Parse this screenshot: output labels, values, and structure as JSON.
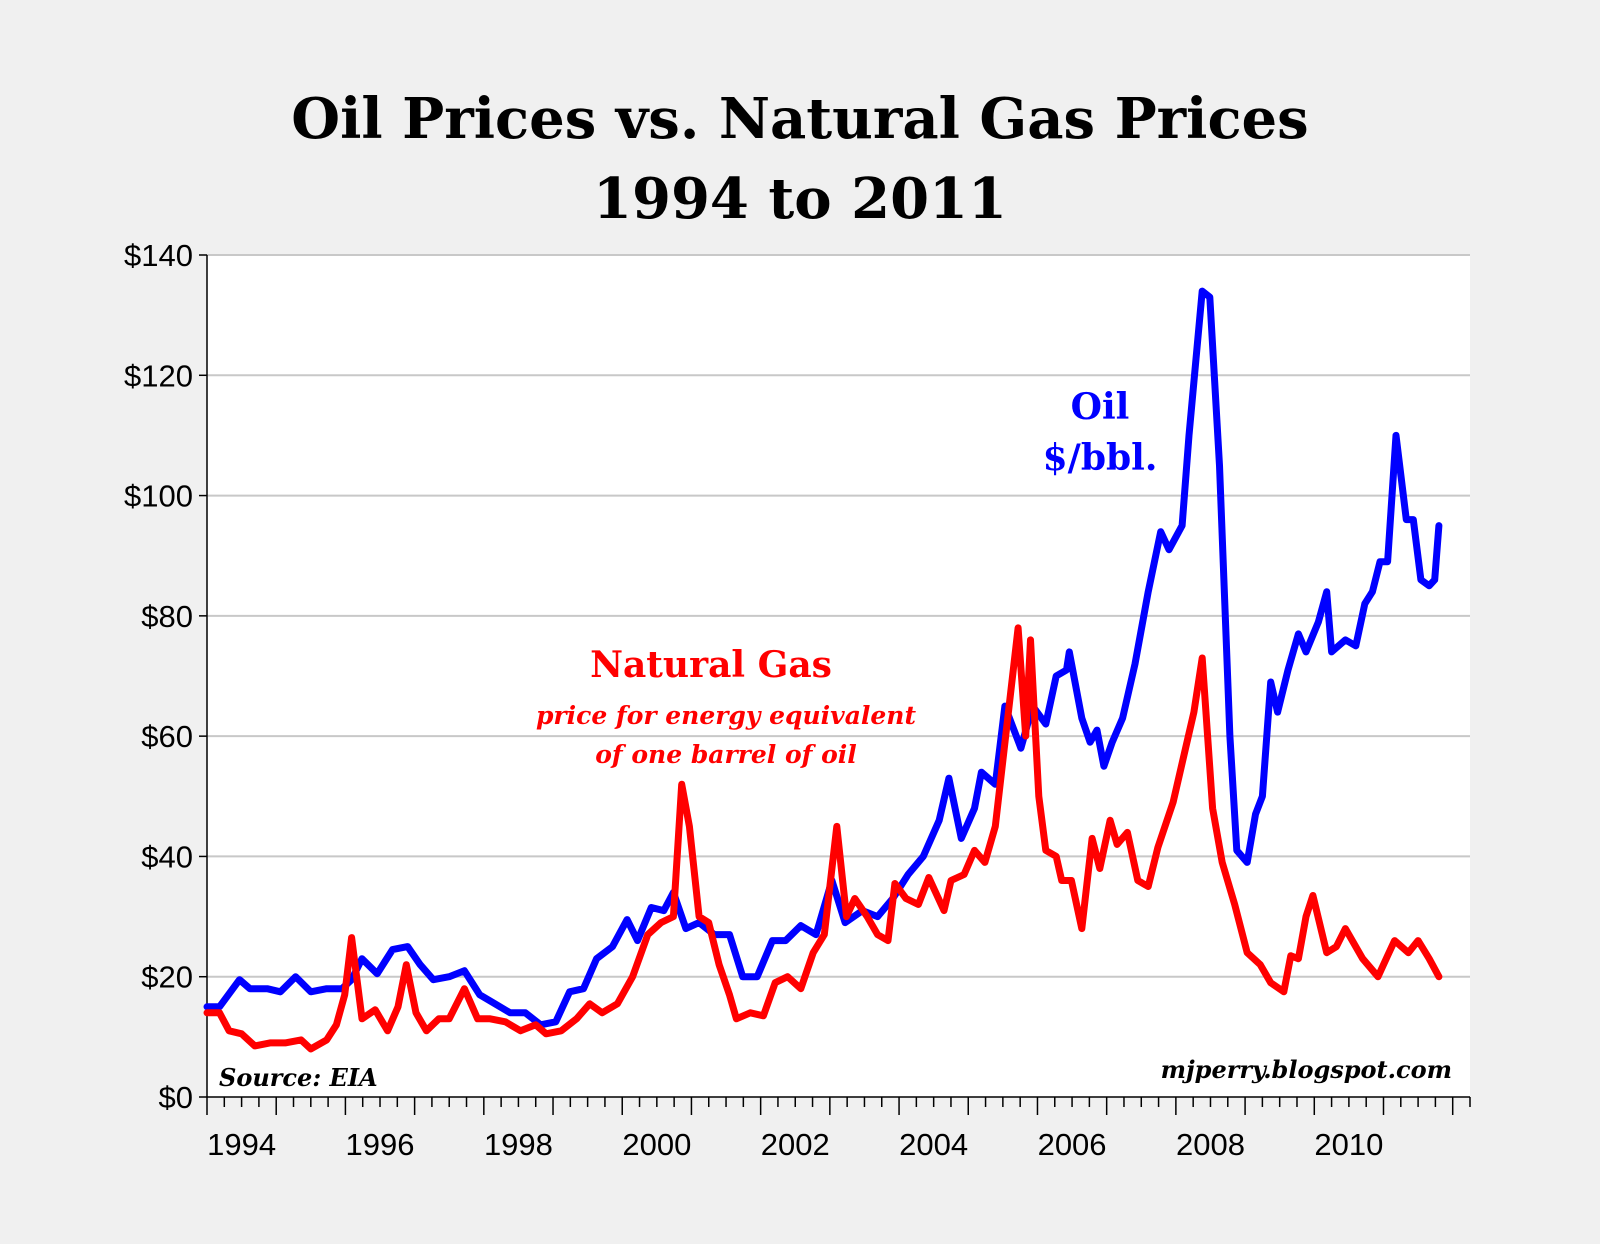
{
  "chart_data": {
    "type": "line",
    "title": "Oil Prices vs. Natural Gas Prices",
    "subtitle": "1994 to 2011",
    "xlabel": "",
    "ylabel": "",
    "xlim": [
      1994,
      2012.25
    ],
    "ylim": [
      0,
      140
    ],
    "y_ticks": [
      "$0",
      "$20",
      "$40",
      "$60",
      "$80",
      "$100",
      "$120",
      "$140"
    ],
    "x_ticks": [
      "1994",
      "1996",
      "1998",
      "2000",
      "2002",
      "2004",
      "2006",
      "2008",
      "2010"
    ],
    "grid": "horizontal",
    "colors": {
      "oil": "#0000ff",
      "gas": "#ff0000",
      "background": "#f0f0f0",
      "plot_background": "#ffffff",
      "grid": "#c8c8c8"
    },
    "annotations": {
      "oil_label": "Oil",
      "oil_unit": "$/bbl.",
      "gas_label": "Natural Gas",
      "gas_note_1": "price for energy equivalent",
      "gas_note_2": "of one barrel of oil",
      "source": "Source: EIA",
      "credit": "mjperry.blogspot.com"
    },
    "series": [
      {
        "key": "oil",
        "name": "Oil $/bbl.",
        "points": [
          [
            1994.0,
            15
          ],
          [
            1994.18,
            15
          ],
          [
            1994.47,
            19.5
          ],
          [
            1994.62,
            18
          ],
          [
            1994.87,
            18
          ],
          [
            1995.06,
            17.5
          ],
          [
            1995.28,
            20
          ],
          [
            1995.5,
            17.5
          ],
          [
            1995.73,
            18
          ],
          [
            1995.95,
            18
          ],
          [
            1996.09,
            19.5
          ],
          [
            1996.24,
            23
          ],
          [
            1996.46,
            20.5
          ],
          [
            1996.68,
            24.5
          ],
          [
            1996.9,
            25
          ],
          [
            1997.08,
            22
          ],
          [
            1997.27,
            19.5
          ],
          [
            1997.5,
            20
          ],
          [
            1997.72,
            21
          ],
          [
            1997.94,
            17
          ],
          [
            1998.16,
            15.5
          ],
          [
            1998.38,
            14
          ],
          [
            1998.6,
            14
          ],
          [
            1998.82,
            12
          ],
          [
            1999.04,
            12.5
          ],
          [
            1999.24,
            17.5
          ],
          [
            1999.44,
            18
          ],
          [
            1999.63,
            23
          ],
          [
            1999.86,
            25
          ],
          [
            2000.07,
            29.5
          ],
          [
            2000.22,
            26
          ],
          [
            2000.42,
            31.5
          ],
          [
            2000.6,
            31
          ],
          [
            2000.74,
            34
          ],
          [
            2000.92,
            28
          ],
          [
            2001.11,
            29
          ],
          [
            2001.33,
            27
          ],
          [
            2001.55,
            27
          ],
          [
            2001.74,
            20
          ],
          [
            2001.95,
            20
          ],
          [
            2002.17,
            26
          ],
          [
            2002.36,
            26
          ],
          [
            2002.58,
            28.5
          ],
          [
            2002.8,
            27
          ],
          [
            2003.03,
            36
          ],
          [
            2003.22,
            29
          ],
          [
            2003.47,
            31
          ],
          [
            2003.69,
            30
          ],
          [
            2003.91,
            33
          ],
          [
            2004.13,
            37
          ],
          [
            2004.35,
            40
          ],
          [
            2004.58,
            46
          ],
          [
            2004.72,
            53
          ],
          [
            2004.9,
            43
          ],
          [
            2005.09,
            48
          ],
          [
            2005.19,
            54
          ],
          [
            2005.39,
            52
          ],
          [
            2005.53,
            65
          ],
          [
            2005.76,
            58
          ],
          [
            2005.93,
            65
          ],
          [
            2006.12,
            62
          ],
          [
            2006.27,
            70
          ],
          [
            2006.42,
            71
          ],
          [
            2006.46,
            74
          ],
          [
            2006.64,
            63
          ],
          [
            2006.76,
            59
          ],
          [
            2006.86,
            61
          ],
          [
            2006.96,
            55
          ],
          [
            2007.08,
            59
          ],
          [
            2007.23,
            63
          ],
          [
            2007.41,
            72
          ],
          [
            2007.6,
            84
          ],
          [
            2007.78,
            94
          ],
          [
            2007.9,
            91
          ],
          [
            2008.09,
            95
          ],
          [
            2008.19,
            110
          ],
          [
            2008.38,
            134
          ],
          [
            2008.49,
            133
          ],
          [
            2008.63,
            105
          ],
          [
            2008.78,
            60
          ],
          [
            2008.88,
            41
          ],
          [
            2009.03,
            39
          ],
          [
            2009.15,
            47
          ],
          [
            2009.25,
            50
          ],
          [
            2009.37,
            69
          ],
          [
            2009.47,
            64
          ],
          [
            2009.62,
            71
          ],
          [
            2009.77,
            77
          ],
          [
            2009.88,
            74
          ],
          [
            2010.06,
            79
          ],
          [
            2010.18,
            84
          ],
          [
            2010.25,
            74
          ],
          [
            2010.45,
            76
          ],
          [
            2010.6,
            75
          ],
          [
            2010.73,
            82
          ],
          [
            2010.84,
            84
          ],
          [
            2010.95,
            89
          ],
          [
            2011.06,
            89
          ],
          [
            2011.18,
            110
          ],
          [
            2011.33,
            96
          ],
          [
            2011.43,
            96
          ],
          [
            2011.54,
            86
          ],
          [
            2011.66,
            85
          ],
          [
            2011.74,
            86
          ],
          [
            2011.8,
            95
          ]
        ]
      },
      {
        "key": "gas",
        "name": "Natural Gas",
        "points": [
          [
            1994.0,
            14
          ],
          [
            1994.18,
            14
          ],
          [
            1994.32,
            11
          ],
          [
            1994.5,
            10.5
          ],
          [
            1994.69,
            8.5
          ],
          [
            1994.91,
            9
          ],
          [
            1995.13,
            9
          ],
          [
            1995.36,
            9.5
          ],
          [
            1995.5,
            8
          ],
          [
            1995.73,
            9.5
          ],
          [
            1995.87,
            12
          ],
          [
            1995.99,
            17
          ],
          [
            1996.09,
            26.5
          ],
          [
            1996.24,
            13
          ],
          [
            1996.43,
            14.5
          ],
          [
            1996.61,
            11
          ],
          [
            1996.76,
            15
          ],
          [
            1996.88,
            22
          ],
          [
            1997.02,
            14
          ],
          [
            1997.17,
            11
          ],
          [
            1997.35,
            13
          ],
          [
            1997.5,
            13
          ],
          [
            1997.72,
            18
          ],
          [
            1997.91,
            13
          ],
          [
            1998.09,
            13
          ],
          [
            1998.31,
            12.5
          ],
          [
            1998.53,
            11
          ],
          [
            1998.75,
            12
          ],
          [
            1998.9,
            10.5
          ],
          [
            1999.12,
            11
          ],
          [
            1999.34,
            13
          ],
          [
            1999.53,
            15.5
          ],
          [
            1999.71,
            14
          ],
          [
            1999.93,
            15.5
          ],
          [
            2000.15,
            20
          ],
          [
            2000.37,
            27
          ],
          [
            2000.56,
            29
          ],
          [
            2000.74,
            30
          ],
          [
            2000.86,
            52
          ],
          [
            2000.97,
            45
          ],
          [
            2001.11,
            30
          ],
          [
            2001.25,
            29
          ],
          [
            2001.4,
            22
          ],
          [
            2001.55,
            17
          ],
          [
            2001.65,
            13
          ],
          [
            2001.85,
            14
          ],
          [
            2002.04,
            13.5
          ],
          [
            2002.21,
            19
          ],
          [
            2002.39,
            20
          ],
          [
            2002.58,
            18
          ],
          [
            2002.76,
            24
          ],
          [
            2002.92,
            27
          ],
          [
            2003.1,
            45
          ],
          [
            2003.24,
            30
          ],
          [
            2003.36,
            33
          ],
          [
            2003.54,
            30
          ],
          [
            2003.69,
            27
          ],
          [
            2003.84,
            26
          ],
          [
            2003.94,
            35.5
          ],
          [
            2004.1,
            33
          ],
          [
            2004.28,
            32
          ],
          [
            2004.43,
            36.5
          ],
          [
            2004.65,
            31
          ],
          [
            2004.75,
            36
          ],
          [
            2004.94,
            37
          ],
          [
            2005.09,
            41
          ],
          [
            2005.24,
            39
          ],
          [
            2005.39,
            45
          ],
          [
            2005.61,
            67
          ],
          [
            2005.72,
            78
          ],
          [
            2005.83,
            60
          ],
          [
            2005.9,
            76
          ],
          [
            2006.02,
            50
          ],
          [
            2006.12,
            41
          ],
          [
            2006.27,
            40
          ],
          [
            2006.35,
            36
          ],
          [
            2006.49,
            36
          ],
          [
            2006.64,
            28
          ],
          [
            2006.79,
            43
          ],
          [
            2006.9,
            38
          ],
          [
            2007.05,
            46
          ],
          [
            2007.15,
            42
          ],
          [
            2007.3,
            44
          ],
          [
            2007.45,
            36
          ],
          [
            2007.6,
            35
          ],
          [
            2007.74,
            41.5
          ],
          [
            2007.96,
            49
          ],
          [
            2008.1,
            56
          ],
          [
            2008.26,
            64
          ],
          [
            2008.38,
            73
          ],
          [
            2008.53,
            48
          ],
          [
            2008.67,
            39
          ],
          [
            2008.85,
            32
          ],
          [
            2009.03,
            24
          ],
          [
            2009.22,
            22
          ],
          [
            2009.37,
            19
          ],
          [
            2009.56,
            17.5
          ],
          [
            2009.66,
            23.5
          ],
          [
            2009.77,
            23
          ],
          [
            2009.88,
            30
          ],
          [
            2009.98,
            33.5
          ],
          [
            2010.18,
            24
          ],
          [
            2010.32,
            25
          ],
          [
            2010.45,
            28
          ],
          [
            2010.7,
            23
          ],
          [
            2010.92,
            20
          ],
          [
            2011.06,
            23.5
          ],
          [
            2011.16,
            26
          ],
          [
            2011.36,
            24
          ],
          [
            2011.5,
            26
          ],
          [
            2011.66,
            23
          ],
          [
            2011.8,
            20
          ]
        ]
      }
    ]
  }
}
